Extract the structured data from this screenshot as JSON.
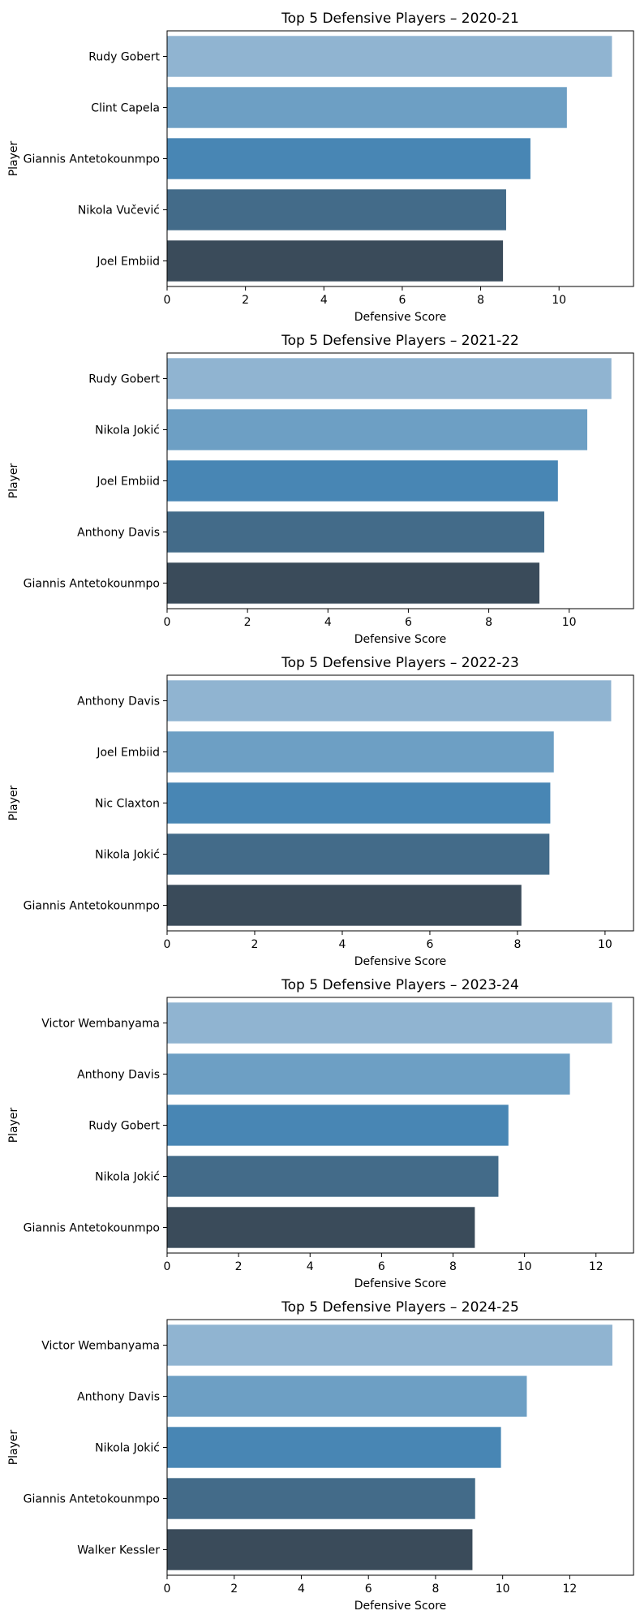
{
  "chart_data": [
    {
      "type": "bar",
      "orientation": "horizontal",
      "title": "Top 5 Defensive Players – 2020-21",
      "xlabel": "Defensive Score",
      "ylabel": "Player",
      "xlim": [
        0,
        11.9
      ],
      "xticks": [
        0,
        2,
        4,
        6,
        8,
        10
      ],
      "categories": [
        "Rudy Gobert",
        "Clint Capela",
        "Giannis Antetokounmpo",
        "Nikola Vučević",
        "Joel Embiid"
      ],
      "values": [
        11.35,
        10.2,
        9.27,
        8.65,
        8.57
      ]
    },
    {
      "type": "bar",
      "orientation": "horizontal",
      "title": "Top 5 Defensive Players – 2021-22",
      "xlabel": "Defensive Score",
      "ylabel": "Player",
      "xlim": [
        0,
        11.6
      ],
      "xticks": [
        0,
        2,
        4,
        6,
        8,
        10
      ],
      "categories": [
        "Rudy Gobert",
        "Nikola Jokić",
        "Joel Embiid",
        "Anthony Davis",
        "Giannis Antetokounmpo"
      ],
      "values": [
        11.05,
        10.45,
        9.72,
        9.38,
        9.26
      ]
    },
    {
      "type": "bar",
      "orientation": "horizontal",
      "title": "Top 5 Defensive Players – 2022-23",
      "xlabel": "Defensive Score",
      "ylabel": "Player",
      "xlim": [
        0,
        10.65
      ],
      "xticks": [
        0,
        2,
        4,
        6,
        8,
        10
      ],
      "categories": [
        "Anthony Davis",
        "Joel Embiid",
        "Nic Claxton",
        "Nikola Jokić",
        "Giannis Antetokounmpo"
      ],
      "values": [
        10.14,
        8.83,
        8.75,
        8.73,
        8.09
      ]
    },
    {
      "type": "bar",
      "orientation": "horizontal",
      "title": "Top 5 Defensive Players – 2023-24",
      "xlabel": "Defensive Score",
      "ylabel": "Player",
      "xlim": [
        0,
        13.05
      ],
      "xticks": [
        0,
        2,
        4,
        6,
        8,
        10,
        12
      ],
      "categories": [
        "Victor Wembanyama",
        "Anthony Davis",
        "Rudy Gobert",
        "Nikola Jokić",
        "Giannis Antetokounmpo"
      ],
      "values": [
        12.45,
        11.27,
        9.55,
        9.27,
        8.61
      ]
    },
    {
      "type": "bar",
      "orientation": "horizontal",
      "title": "Top 5 Defensive Players – 2024-25",
      "xlabel": "Defensive Score",
      "ylabel": "Player",
      "xlim": [
        0,
        13.9
      ],
      "xticks": [
        0,
        2,
        4,
        6,
        8,
        10,
        12
      ],
      "categories": [
        "Victor Wembanyama",
        "Anthony Davis",
        "Nikola Jokić",
        "Giannis Antetokounmpo",
        "Walker Kessler"
      ],
      "values": [
        13.27,
        10.72,
        9.95,
        9.18,
        9.1
      ]
    }
  ],
  "colors": {
    "bars": [
      "#90b4d1",
      "#6d9fc4",
      "#4886b4",
      "#436b89",
      "#3a4b5a"
    ],
    "axis": "#000000",
    "background": "#ffffff"
  }
}
